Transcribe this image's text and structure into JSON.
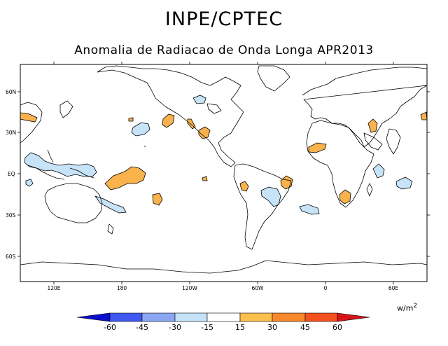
{
  "header": {
    "title": "INPE/CPTEC",
    "subtitle": "Anomalia de Radiacao de Onda Longa APR2013"
  },
  "map": {
    "lat_ticks": [
      "60N",
      "30N",
      "EQ",
      "30S",
      "60S"
    ],
    "lon_ticks": [
      "120E",
      "180",
      "120W",
      "60W",
      "0",
      "60E"
    ]
  },
  "colorbar": {
    "units": "w/m",
    "units_exp": "2",
    "labels": [
      "-60",
      "-45",
      "-30",
      "-15",
      "15",
      "30",
      "45",
      "60"
    ],
    "colors": [
      "#0b10cf",
      "#3f58ef",
      "#8aa6f3",
      "#c4e2f8",
      "#ffffff",
      "#fbc04d",
      "#f9872b",
      "#f3521f",
      "#d7141a"
    ]
  },
  "colors": {
    "positive_anomaly": "#f9b24c",
    "negative_anomaly": "#c6e3f8",
    "coastline": "#000000"
  }
}
